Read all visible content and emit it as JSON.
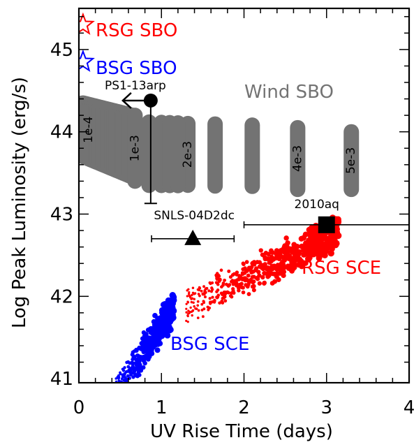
{
  "chart_data": {
    "type": "scatter",
    "xlabel": "UV Rise Time (days)",
    "ylabel": "Log Peak Luminosity (erg/s)",
    "xlim": [
      0,
      4
    ],
    "ylim": [
      40.95,
      45.5
    ],
    "x_ticks": [
      0,
      1,
      2,
      3,
      4
    ],
    "x_tick_labels": [
      "0",
      "1",
      "2",
      "3",
      "4"
    ],
    "y_ticks": [
      41,
      42,
      43,
      44,
      45
    ],
    "y_tick_labels": [
      "41",
      "42",
      "43",
      "44",
      "45"
    ],
    "grid": false,
    "colors": {
      "rsg": "#ff0000",
      "bsg": "#0000ff",
      "wind": "#737373",
      "obs": "#000000"
    },
    "labels": {
      "rsg_sbo": "RSG SBO",
      "bsg_sbo": "BSG SBO",
      "wind_sbo": "Wind SBO",
      "rsg_sce": "RSG SCE",
      "bsg_sce": "BSG SCE"
    },
    "shock_breakout_stars": [
      {
        "x": 0.05,
        "y": 45.3,
        "color": "red"
      },
      {
        "x": 0.05,
        "y": 44.85,
        "color": "blue"
      }
    ],
    "wind_sbo_bands": [
      {
        "label": "1e-4",
        "x": 0.05,
        "y_min": 43.7,
        "y_max": 44.35
      },
      {
        "label": "1e-3",
        "x": 0.68,
        "y_min": 43.4,
        "y_max": 44.2
      },
      {
        "label": "2e-3",
        "x": 1.32,
        "y_min": 43.35,
        "y_max": 44.1
      },
      {
        "label": "4e-3",
        "x": 2.65,
        "y_min": 43.3,
        "y_max": 44.05
      },
      {
        "label": "5e-3",
        "x": 3.3,
        "y_min": 43.3,
        "y_max": 44.0
      }
    ],
    "wind_sbo_unlabeled_x": [
      0.85,
      1.0,
      1.1,
      1.2,
      1.65,
      2.1
    ],
    "observations": [
      {
        "name": "PS1-13arp",
        "x": 0.87,
        "y": 44.38,
        "marker": "circle",
        "y_err_low": 43.13,
        "x_upper_limit": true
      },
      {
        "name": "SNLS-04D2dc",
        "x": 1.38,
        "y": 42.7,
        "marker": "triangle",
        "x_err": [
          0.88,
          1.88
        ]
      },
      {
        "name": "2010aq",
        "x": 3.0,
        "y": 42.87,
        "marker": "square",
        "x_err": [
          2.0,
          4.0
        ]
      }
    ],
    "sce_model": {
      "rsg": {
        "x_range": [
          1.3,
          3.15
        ],
        "y_at_start": 42.05,
        "y_at_end": 42.95
      },
      "bsg": {
        "x_range": [
          0.42,
          1.15
        ],
        "y_at_start": 40.95,
        "y_at_end": 42.05
      }
    }
  }
}
